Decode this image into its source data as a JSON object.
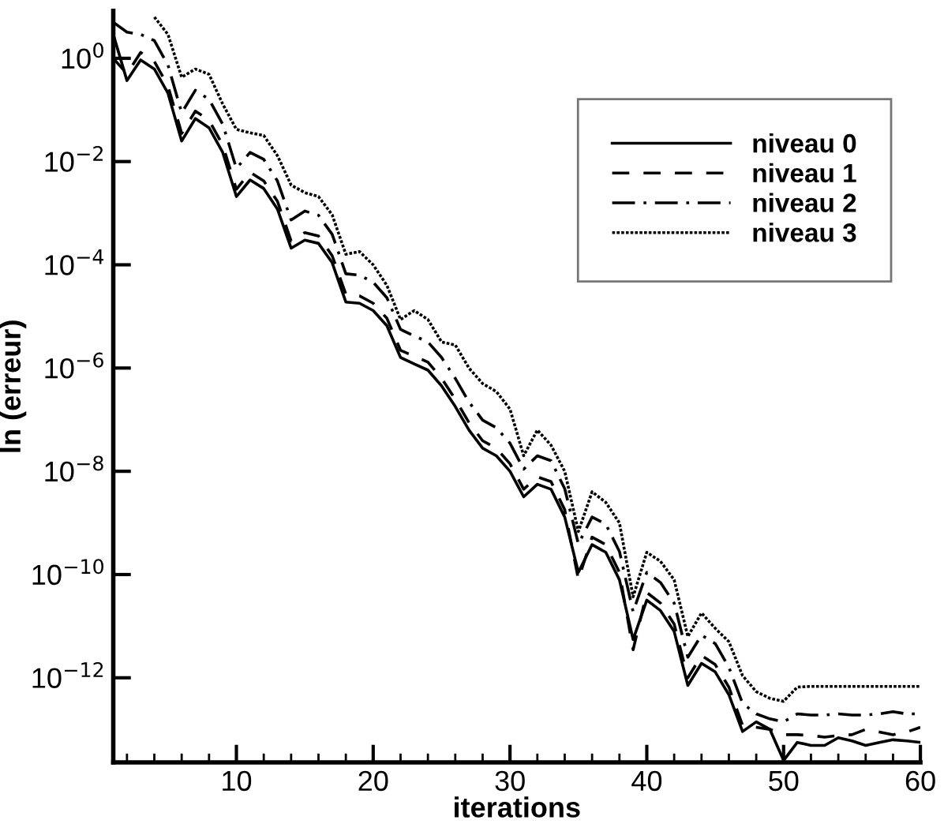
{
  "chart_data": {
    "type": "line",
    "xlabel": "iterations",
    "ylabel": "ln (erreur)",
    "log": "y",
    "xlim": [
      1,
      60
    ],
    "ylim": [
      2.3e-14,
      8.3
    ],
    "x": [
      1,
      2,
      3,
      4,
      5,
      6,
      7,
      8,
      9,
      10,
      11,
      12,
      13,
      14,
      15,
      16,
      17,
      18,
      19,
      20,
      21,
      22,
      23,
      24,
      25,
      26,
      27,
      28,
      29,
      30,
      31,
      32,
      33,
      34,
      35,
      36,
      37,
      38,
      39,
      40,
      41,
      42,
      43,
      44,
      45,
      46,
      47,
      48,
      49,
      50,
      51,
      52,
      53,
      54,
      55,
      56,
      57,
      58,
      59,
      60
    ],
    "xticks": [
      {
        "value": 2,
        "label": null
      },
      {
        "value": 4,
        "label": null
      },
      {
        "value": 6,
        "label": null
      },
      {
        "value": 8,
        "label": null
      },
      10,
      {
        "value": 12,
        "label": null
      },
      {
        "value": 14,
        "label": null
      },
      {
        "value": 16,
        "label": null
      },
      {
        "value": 18,
        "label": null
      },
      20,
      {
        "value": 22,
        "label": null
      },
      {
        "value": 24,
        "label": null
      },
      {
        "value": 26,
        "label": null
      },
      {
        "value": 28,
        "label": null
      },
      30,
      {
        "value": 32,
        "label": null
      },
      {
        "value": 34,
        "label": null
      },
      {
        "value": 36,
        "label": null
      },
      {
        "value": 38,
        "label": null
      },
      40,
      {
        "value": 42,
        "label": null
      },
      {
        "value": 44,
        "label": null
      },
      {
        "value": 46,
        "label": null
      },
      {
        "value": 48,
        "label": null
      },
      50,
      {
        "value": 52,
        "label": null
      },
      {
        "value": 54,
        "label": null
      },
      {
        "value": 56,
        "label": null
      },
      {
        "value": 58,
        "label": null
      },
      60
    ],
    "yticks": [
      {
        "value": 1,
        "label": "10$^{0}$"
      },
      {
        "value": 0.01,
        "label": "10$^{−2}$"
      },
      {
        "value": 0.0001,
        "label": "10$^{−4}$"
      },
      {
        "value": 1e-06,
        "label": "10$^{−6}$"
      },
      {
        "value": 1e-08,
        "label": "10$^{−8}$"
      },
      {
        "value": 1e-10,
        "label": "10$^{−10}$"
      },
      {
        "value": 1e-12,
        "label": "10$^{−12}$"
      }
    ],
    "grid": false,
    "legend": "top right",
    "marker": "none",
    "series": [
      {
        "name": "niveau 0",
        "color": "#000000",
        "line_style": "solid",
        "values": [
          2.9,
          0.37,
          0.93,
          0.62,
          0.21,
          0.025,
          0.068,
          0.045,
          0.015,
          0.0021,
          0.0044,
          0.003,
          0.0012,
          0.00021,
          0.0003,
          0.00026,
          0.00011,
          1.9e-05,
          1.8e-05,
          1.3e-05,
          6.6e-06,
          1.6e-06,
          1.2e-06,
          9.1e-07,
          4.5e-07,
          1.8e-07,
          6.3e-08,
          2.8e-08,
          2e-08,
          1e-08,
          3.2e-09,
          5.6e-09,
          4.5e-09,
          1.3e-09,
          1.1e-10,
          3.8e-10,
          2.7e-10,
          7.9e-11,
          5.5e-12,
          3.2e-11,
          2e-11,
          7.9e-12,
          7.1e-13,
          1.9e-12,
          1.3e-12,
          4.7e-13,
          9.1e-14,
          1.4e-13,
          1e-13,
          2.5e-14,
          5.6e-14,
          4.9e-14,
          4.9e-14,
          6.9e-14,
          6e-14,
          4.9e-14,
          5.6e-14,
          6.3e-14,
          6e-14,
          5.6e-14
        ]
      },
      {
        "name": "niveau 1",
        "color": "#000000",
        "line_style": "dashed",
        "values": [
          1.0,
          0.5,
          1.3,
          0.87,
          0.29,
          0.035,
          0.095,
          0.063,
          0.021,
          0.0029,
          0.0062,
          0.0042,
          0.0017,
          0.00029,
          0.00042,
          0.00036,
          0.00015,
          2.7e-05,
          2.5e-05,
          1.8e-05,
          9.2e-06,
          2.2e-06,
          1.7e-06,
          1.3e-06,
          6.3e-07,
          2.5e-07,
          8.8e-08,
          3.9e-08,
          2.8e-08,
          1.4e-08,
          4.5e-09,
          7.8e-09,
          6.3e-09,
          1.8e-09,
          8e-11,
          5.3e-10,
          3.8e-10,
          1.1e-10,
          3.5e-12,
          4.5e-11,
          2.8e-11,
          1.1e-11,
          1e-12,
          2.7e-12,
          1.8e-12,
          6.6e-13,
          1.2e-13,
          1.1e-13,
          1e-13,
          7.9e-14,
          7.9e-14,
          7.6e-14,
          7.1e-14,
          7.6e-14,
          7.9e-14,
          1e-13,
          8.9e-14,
          7.9e-14,
          8.9e-14,
          1.1e-13
        ]
      },
      {
        "name": "niveau 2",
        "color": "#000000",
        "line_style": "dashdot",
        "values": [
          5.0,
          3.2,
          2.9,
          2.2,
          0.74,
          0.088,
          0.24,
          0.16,
          0.053,
          0.0074,
          0.015,
          0.011,
          0.0042,
          0.00074,
          0.0011,
          0.00091,
          0.00039,
          6.7e-05,
          6.3e-05,
          4.6e-05,
          2.3e-05,
          5.6e-06,
          4.2e-06,
          3.2e-06,
          1.6e-06,
          6.3e-07,
          2.2e-07,
          9.8e-08,
          7e-08,
          3.5e-08,
          1.1e-08,
          2e-08,
          1.6e-08,
          4.6e-09,
          3.9e-10,
          1.3e-09,
          9.5e-10,
          2.8e-10,
          1.9e-11,
          1.1e-10,
          7e-11,
          2.8e-11,
          2.5e-12,
          6.7e-12,
          4.6e-12,
          1.6e-12,
          3.2e-13,
          2e-13,
          1.6e-13,
          1.4e-13,
          2e-13,
          1.9e-13,
          1.9e-13,
          2e-13,
          1.9e-13,
          1.9e-13,
          2e-13,
          2.2e-13,
          2e-13,
          2e-13
        ]
      },
      {
        "name": "niveau 3",
        "color": "#000000",
        "line_style": "dotted",
        "values": [
          null,
          null,
          null,
          6.3,
          2.9,
          0.43,
          0.62,
          0.49,
          0.13,
          0.042,
          0.036,
          0.032,
          0.013,
          0.0035,
          0.0025,
          0.0021,
          0.00093,
          0.00016,
          0.00018,
          0.0001,
          4e-05,
          8.7e-06,
          1.3e-05,
          8.7e-06,
          3.2e-06,
          2.8e-06,
          1e-06,
          5e-07,
          3.5e-07,
          1.6e-07,
          2e-08,
          6.3e-08,
          3.2e-08,
          1e-08,
          6.8e-10,
          4e-09,
          2.5e-09,
          1e-09,
          3.7e-11,
          2.7e-10,
          1.8e-10,
          7.9e-11,
          6.3e-12,
          1.8e-11,
          9.1e-12,
          5e-12,
          1.1e-12,
          5.4e-13,
          4e-13,
          3.5e-13,
          6.6e-13,
          6.8e-13,
          6.8e-13,
          6.8e-13,
          6.8e-13,
          6.8e-13,
          6.8e-13,
          6.8e-13,
          6.8e-13,
          6.8e-13
        ]
      }
    ]
  }
}
